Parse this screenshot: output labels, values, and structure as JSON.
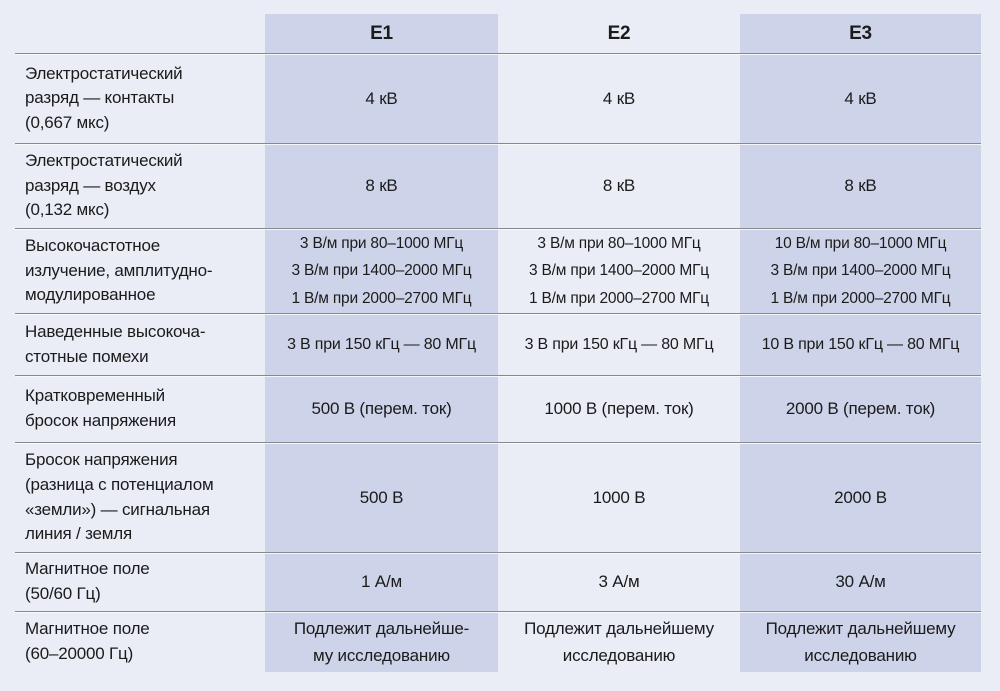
{
  "colors": {
    "page_bg": "#EAEDF6",
    "shaded_column_bg": "#CDD3E9",
    "separator_line": "#87898F",
    "text": "#1B1B1B"
  },
  "table": {
    "columns": [
      "",
      "E1",
      "E2",
      "E3"
    ],
    "rows": [
      {
        "label": [
          "Электростатический",
          "разряд — контакты",
          "(0,667 мкс)"
        ],
        "e1": "4 кВ",
        "e2": "4 кВ",
        "e3": "4 кВ"
      },
      {
        "label": [
          "Электростатический",
          "разряд — воздух",
          "(0,132 мкс)"
        ],
        "e1": "8 кВ",
        "e2": "8 кВ",
        "e3": "8 кВ"
      },
      {
        "label": [
          "Высокочастотное",
          "излучение, амплитудно-",
          "модулированное"
        ],
        "e1": [
          "3 В/м при 80–1000 МГц",
          "3 В/м при 1400–2000 МГц",
          "1 В/м при 2000–2700 МГц"
        ],
        "e2": [
          "3 В/м при 80–1000 МГц",
          "3 В/м при 1400–2000 МГц",
          "1 В/м при 2000–2700 МГц"
        ],
        "e3": [
          "10 В/м при 80–1000 МГц",
          "3 В/м при 1400–2000 МГц",
          "1 В/м при 2000–2700 МГц"
        ]
      },
      {
        "label": [
          "Наведенные высокоча-",
          "стотные помехи"
        ],
        "e1": "3 В при 150 кГц — 80 МГц",
        "e2": "3 В при 150 кГц — 80 МГц",
        "e3": "10 В при 150 кГц — 80 МГц"
      },
      {
        "label": [
          "Кратковременный",
          "бросок напряжения"
        ],
        "e1": "500 В (перем. ток)",
        "e2": "1000 В (перем. ток)",
        "e3": "2000 В (перем. ток)"
      },
      {
        "label": [
          "Бросок напряжения",
          "(разница с потенциалом",
          "«земли») — сигнальная",
          "линия / земля"
        ],
        "e1": "500 В",
        "e2": "1000 В",
        "e3": "2000 В"
      },
      {
        "label": [
          "Магнитное поле",
          "(50/60 Гц)"
        ],
        "e1": "1 А/м",
        "e2": "3 А/м",
        "e3": "30 А/м"
      },
      {
        "label": [
          "Магнитное поле",
          "(60–20000 Гц)"
        ],
        "e1": [
          "Подлежит дальнейше-",
          "му исследованию"
        ],
        "e2": [
          "Подлежит дальнейшему",
          "исследованию"
        ],
        "e3": [
          "Подлежит дальнейшему",
          "исследованию"
        ]
      }
    ]
  }
}
